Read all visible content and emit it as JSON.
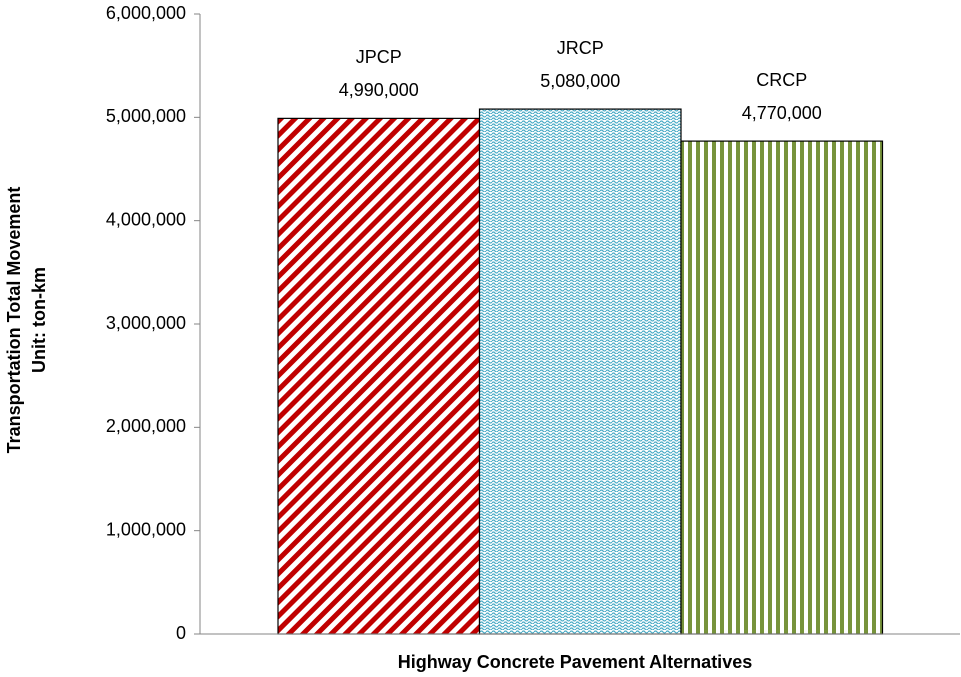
{
  "chart_data": {
    "type": "bar",
    "categories": [
      "JPCP",
      "JRCP",
      "CRCP"
    ],
    "values": [
      4990000,
      5080000,
      4770000
    ],
    "value_labels": [
      "4,990,000",
      "5,080,000",
      "4,770,000"
    ],
    "colors": [
      "#c00000",
      "#4bacc6",
      "#77933c"
    ],
    "xlabel": "Highway Concrete Pavement Alternatives",
    "ylabel": [
      "Transportation Total Movement",
      "Unit: ton-km"
    ],
    "ylim": [
      0,
      6000000
    ],
    "yticks": [
      {
        "value": 0,
        "label": "0"
      },
      {
        "value": 1000000,
        "label": "1,000,000"
      },
      {
        "value": 2000000,
        "label": "2,000,000"
      },
      {
        "value": 3000000,
        "label": "3,000,000"
      },
      {
        "value": 4000000,
        "label": "4,000,000"
      },
      {
        "value": 5000000,
        "label": "5,000,000"
      },
      {
        "value": 6000000,
        "label": "6,000,000"
      }
    ],
    "grid": false
  }
}
